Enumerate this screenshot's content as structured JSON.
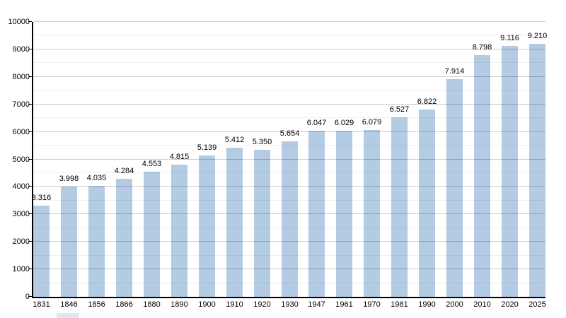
{
  "chart_data": {
    "type": "bar",
    "categories": [
      "1831",
      "1846",
      "1856",
      "1866",
      "1880",
      "1890",
      "1900",
      "1910",
      "1920",
      "1930",
      "1947",
      "1961",
      "1970",
      "1981",
      "1990",
      "2000",
      "2010",
      "2020",
      "2025"
    ],
    "values": [
      3316,
      3998,
      4035,
      4284,
      4553,
      4815,
      5139,
      5412,
      5350,
      5654,
      6047,
      6029,
      6079,
      6527,
      6822,
      7914,
      8798,
      9116,
      9210
    ],
    "bar_labels": [
      "3.316",
      "3.998",
      "4.035",
      "4.284",
      "4.553",
      "4.815",
      "5.139",
      "5.412",
      "5.350",
      "5.654",
      "6.047",
      "6.029",
      "6.079",
      "6.527",
      "6.822",
      "7.914",
      "8.798",
      "9.116",
      "9.210"
    ],
    "title": "",
    "xlabel": "",
    "ylabel": "",
    "ylim": [
      0,
      10000
    ],
    "y_tick_labels": [
      "0",
      "1000",
      "2000",
      "3000",
      "4000",
      "5000",
      "6000",
      "7000",
      "8000",
      "9000",
      "10000"
    ],
    "y_major_step": 1000,
    "y_minor_step": 500,
    "grid": true,
    "legend": false,
    "colors": {
      "bar": "#b3cbe3",
      "axis": "#000000",
      "major_grid": "rgba(0,0,0,0.20)",
      "minor_grid": "rgba(0,0,0,0.06)",
      "label_text": "#000000"
    }
  }
}
